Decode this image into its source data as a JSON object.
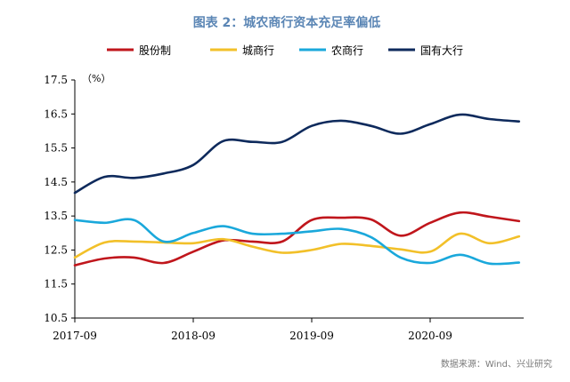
{
  "chart_data": {
    "type": "line",
    "title": "图表 2：城农商行资本充足率偏低",
    "unit_label": "（%）",
    "source": "数据来源：Wind、兴业研究",
    "x_ticks": [
      "2017-09",
      "2018-09",
      "2019-09",
      "2020-09"
    ],
    "x_periods": [
      "2017-09",
      "2017-12",
      "2018-03",
      "2018-06",
      "2018-09",
      "2018-12",
      "2019-03",
      "2019-06",
      "2019-09",
      "2019-12",
      "2020-03",
      "2020-06",
      "2020-09",
      "2020-12",
      "2021-03",
      "2021-06"
    ],
    "ylim": [
      10.5,
      17.5
    ],
    "y_ticks": [
      "10.5",
      "11.5",
      "12.5",
      "13.5",
      "14.5",
      "15.5",
      "16.5",
      "17.5"
    ],
    "series": [
      {
        "name": "股份制",
        "color": "#c0161c",
        "values": [
          12.05,
          12.25,
          12.28,
          12.12,
          12.45,
          12.78,
          12.75,
          12.75,
          13.38,
          13.45,
          13.4,
          12.92,
          13.3,
          13.6,
          13.48,
          13.35
        ]
      },
      {
        "name": "城商行",
        "color": "#f2c029",
        "values": [
          12.28,
          12.72,
          12.75,
          12.72,
          12.7,
          12.82,
          12.6,
          12.42,
          12.5,
          12.68,
          12.62,
          12.52,
          12.45,
          12.98,
          12.7,
          12.9
        ]
      },
      {
        "name": "农商行",
        "color": "#1aa8db",
        "values": [
          13.38,
          13.3,
          13.38,
          12.75,
          13.0,
          13.2,
          12.98,
          12.98,
          13.05,
          13.12,
          12.88,
          12.28,
          12.12,
          12.36,
          12.1,
          12.13
        ]
      },
      {
        "name": "国有大行",
        "color": "#0e2a5c",
        "values": [
          14.18,
          14.65,
          14.62,
          14.75,
          15.0,
          15.7,
          15.68,
          15.68,
          16.15,
          16.3,
          16.15,
          15.92,
          16.2,
          16.48,
          16.35,
          16.28
        ]
      }
    ]
  }
}
